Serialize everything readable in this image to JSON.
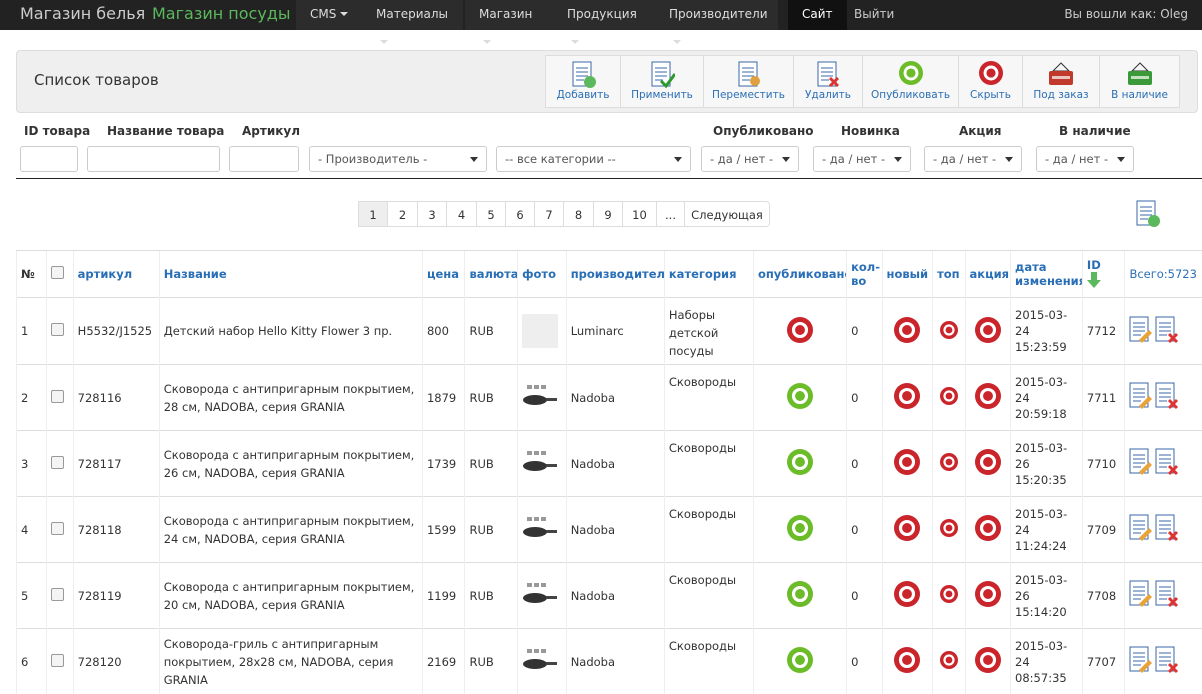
{
  "nav": {
    "brands": [
      "Магазин белья",
      "Магазин посуды"
    ],
    "menu": [
      "CMS",
      "Материалы",
      "Магазин",
      "Продукция",
      "Производители"
    ],
    "site": "Сайт",
    "logout": "Выйти",
    "user": "Вы вошли как: Oleg"
  },
  "toolbar": {
    "title": "Список товаров",
    "buttons": [
      "Добавить",
      "Применить",
      "Переместить",
      "Удалить",
      "Опубликовать",
      "Скрыть",
      "Под заказ",
      "В наличие"
    ]
  },
  "filters": {
    "labels": [
      "ID товара",
      "Название товара",
      "Артикул",
      "Опубликовано",
      "Новинка",
      "Акция",
      "В наличие"
    ],
    "selects": [
      "- Производитель -",
      "-- все категории --",
      "- да / нет -",
      "- да / нет -",
      "- да / нет -",
      "- да / нет -"
    ]
  },
  "pagination": {
    "pages": [
      "1",
      "2",
      "3",
      "4",
      "5",
      "6",
      "7",
      "8",
      "9",
      "10",
      "..."
    ],
    "next": "Следующая"
  },
  "table": {
    "headers": [
      "№",
      "артикул",
      "Название",
      "цена",
      "валюта",
      "фото",
      "производитель",
      "категория",
      "опубликовано",
      "кол-во",
      "новый",
      "топ",
      "акция",
      "дата изменения",
      "ID"
    ],
    "total": "Всего:5723",
    "rows": [
      {
        "num": "1",
        "sku": "H5532/J1525",
        "name": "Детский набор Hello Kitty Flower 3 пр.",
        "price": "800",
        "currency": "RUB",
        "maker": "Luminarc",
        "category": "Наборы детской посуды",
        "published": false,
        "qty": "0",
        "date": "2015-03-24 15:23:59",
        "id": "7712"
      },
      {
        "num": "2",
        "sku": "728116",
        "name": "Сковорода с антипригарным покрытием, 28 см, NADOBA, серия GRANIA",
        "price": "1879",
        "currency": "RUB",
        "maker": "Nadoba",
        "category": "Сковороды",
        "published": true,
        "qty": "0",
        "date": "2015-03-24 20:59:18",
        "id": "7711"
      },
      {
        "num": "3",
        "sku": "728117",
        "name": "Сковорода с антипригарным покрытием, 26 см, NADOBA, серия GRANIA",
        "price": "1739",
        "currency": "RUB",
        "maker": "Nadoba",
        "category": "Сковороды",
        "published": true,
        "qty": "0",
        "date": "2015-03-26 15:20:35",
        "id": "7710"
      },
      {
        "num": "4",
        "sku": "728118",
        "name": "Сковорода с антипригарным покрытием, 24 см, NADOBA, серия GRANIA",
        "price": "1599",
        "currency": "RUB",
        "maker": "Nadoba",
        "category": "Сковороды",
        "published": true,
        "qty": "0",
        "date": "2015-03-24 11:24:24",
        "id": "7709"
      },
      {
        "num": "5",
        "sku": "728119",
        "name": "Сковорода с антипригарным покрытием, 20 см, NADOBA, серия GRANIA",
        "price": "1199",
        "currency": "RUB",
        "maker": "Nadoba",
        "category": "Сковороды",
        "published": true,
        "qty": "0",
        "date": "2015-03-26 15:14:20",
        "id": "7708"
      },
      {
        "num": "6",
        "sku": "728120",
        "name": "Сковорода-гриль с антипригарным покрытием, 28x28 см, NADOBA, серия GRANIA",
        "price": "2169",
        "currency": "RUB",
        "maker": "Nadoba",
        "category": "Сковороды",
        "published": true,
        "qty": "0",
        "date": "2015-03-24 08:57:35",
        "id": "7707"
      }
    ]
  }
}
